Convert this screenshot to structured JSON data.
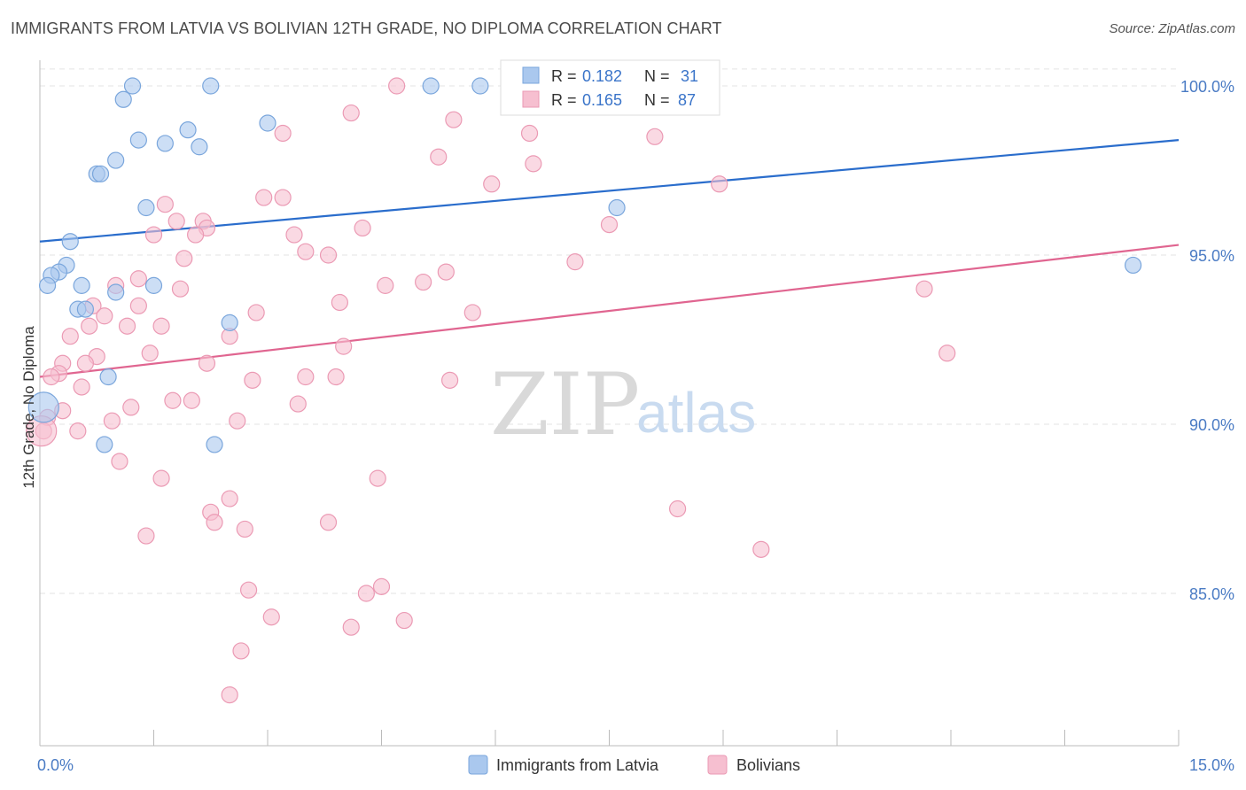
{
  "header": {
    "title": "IMMIGRANTS FROM LATVIA VS BOLIVIAN 12TH GRADE, NO DIPLOMA CORRELATION CHART",
    "source": "Source: ZipAtlas.com"
  },
  "watermark": {
    "zip": "ZIP",
    "atlas": "atlas"
  },
  "legend": {
    "series1": {
      "r_label": "R =",
      "r_value": "0.182",
      "n_label": "N =",
      "n_value": "31"
    },
    "series2": {
      "r_label": "R =",
      "r_value": "0.165",
      "n_label": "N =",
      "n_value": "87"
    },
    "bottom": [
      "Immigrants from Latvia",
      "Bolivians"
    ]
  },
  "colors": {
    "blue_fill": "#aac8ee",
    "blue_stroke": "#7aa6dc",
    "blue_line": "#2a6dcc",
    "pink_fill": "#f6bfd0",
    "pink_stroke": "#eb9ab4",
    "pink_line": "#e06590",
    "grid": "#e3e3e3",
    "tick_text": "#4a7bc4"
  },
  "chart_data": {
    "type": "scatter",
    "xlabel": "",
    "ylabel": "12th Grade, No Diploma",
    "xlim": [
      0,
      15
    ],
    "ylim": [
      80.7,
      101.0
    ],
    "x_tick_labels": [
      {
        "value": 0,
        "label": "0.0%"
      },
      {
        "value": 15,
        "label": "15.0%"
      }
    ],
    "x_minor_ticks": [
      1.5,
      3.0,
      4.5,
      6.0,
      7.5,
      9.0,
      10.5,
      12.0,
      13.5
    ],
    "y_ticks": [
      {
        "value": 85,
        "label": "85.0%"
      },
      {
        "value": 90,
        "label": "90.0%"
      },
      {
        "value": 95,
        "label": "95.0%"
      },
      {
        "value": 100,
        "label": "100.0%"
      }
    ],
    "grid": true,
    "series": [
      {
        "name": "Immigrants from Latvia",
        "color": "#aac8ee",
        "trend": {
          "x": [
            0,
            15
          ],
          "y": [
            95.4,
            98.4
          ]
        },
        "points": [
          [
            1.22,
            100.0
          ],
          [
            2.25,
            100.0
          ],
          [
            5.15,
            100.0
          ],
          [
            5.8,
            100.0
          ],
          [
            1.1,
            99.6
          ],
          [
            3.0,
            98.9
          ],
          [
            1.95,
            98.7
          ],
          [
            1.3,
            98.4
          ],
          [
            1.65,
            98.3
          ],
          [
            2.1,
            98.2
          ],
          [
            1.0,
            97.8
          ],
          [
            0.75,
            97.4
          ],
          [
            0.8,
            97.4
          ],
          [
            1.4,
            96.4
          ],
          [
            7.6,
            96.4
          ],
          [
            0.4,
            95.4
          ],
          [
            0.35,
            94.7
          ],
          [
            14.4,
            94.7
          ],
          [
            0.25,
            94.5
          ],
          [
            0.15,
            94.4
          ],
          [
            0.1,
            94.1
          ],
          [
            0.55,
            94.1
          ],
          [
            1.5,
            94.1
          ],
          [
            1.0,
            93.9
          ],
          [
            0.5,
            93.4
          ],
          [
            0.6,
            93.4
          ],
          [
            2.5,
            93.0
          ],
          [
            0.9,
            91.4
          ],
          [
            0.05,
            90.5
          ],
          [
            0.85,
            89.4
          ],
          [
            2.3,
            89.4
          ]
        ],
        "point_sizes": [
          10,
          10,
          10,
          10,
          10,
          10,
          10,
          10,
          10,
          10,
          10,
          10,
          10,
          10,
          10,
          10,
          10,
          10,
          10,
          10,
          10,
          10,
          10,
          10,
          10,
          10,
          10,
          10,
          18,
          10,
          10
        ]
      },
      {
        "name": "Bolivians",
        "color": "#f6bfd0",
        "trend": {
          "x": [
            0,
            15
          ],
          "y": [
            91.4,
            95.3
          ]
        },
        "points": [
          [
            4.7,
            100.0
          ],
          [
            4.1,
            99.2
          ],
          [
            5.45,
            99.0
          ],
          [
            3.2,
            98.6
          ],
          [
            6.45,
            98.6
          ],
          [
            8.1,
            98.5
          ],
          [
            5.25,
            97.9
          ],
          [
            6.5,
            97.7
          ],
          [
            5.95,
            97.1
          ],
          [
            8.95,
            97.1
          ],
          [
            2.95,
            96.7
          ],
          [
            3.2,
            96.7
          ],
          [
            1.65,
            96.5
          ],
          [
            1.8,
            96.0
          ],
          [
            2.15,
            96.0
          ],
          [
            7.5,
            95.9
          ],
          [
            2.2,
            95.8
          ],
          [
            4.25,
            95.8
          ],
          [
            1.5,
            95.6
          ],
          [
            2.05,
            95.6
          ],
          [
            3.35,
            95.6
          ],
          [
            3.5,
            95.1
          ],
          [
            3.8,
            95.0
          ],
          [
            1.9,
            94.9
          ],
          [
            7.05,
            94.8
          ],
          [
            5.35,
            94.5
          ],
          [
            1.3,
            94.3
          ],
          [
            5.05,
            94.2
          ],
          [
            1.0,
            94.1
          ],
          [
            4.55,
            94.1
          ],
          [
            1.85,
            94.0
          ],
          [
            11.65,
            94.0
          ],
          [
            1.3,
            93.5
          ],
          [
            3.95,
            93.6
          ],
          [
            0.7,
            93.5
          ],
          [
            2.85,
            93.3
          ],
          [
            5.7,
            93.3
          ],
          [
            0.85,
            93.2
          ],
          [
            1.15,
            92.9
          ],
          [
            1.6,
            92.9
          ],
          [
            0.65,
            92.9
          ],
          [
            2.5,
            92.6
          ],
          [
            0.4,
            92.6
          ],
          [
            4.0,
            92.3
          ],
          [
            1.45,
            92.1
          ],
          [
            11.95,
            92.1
          ],
          [
            0.75,
            92.0
          ],
          [
            0.3,
            91.8
          ],
          [
            0.6,
            91.8
          ],
          [
            2.2,
            91.8
          ],
          [
            0.25,
            91.5
          ],
          [
            0.15,
            91.4
          ],
          [
            2.8,
            91.3
          ],
          [
            3.5,
            91.4
          ],
          [
            3.9,
            91.4
          ],
          [
            5.4,
            91.3
          ],
          [
            0.55,
            91.1
          ],
          [
            1.75,
            90.7
          ],
          [
            2.0,
            90.7
          ],
          [
            3.4,
            90.6
          ],
          [
            1.2,
            90.5
          ],
          [
            0.3,
            90.4
          ],
          [
            0.1,
            90.2
          ],
          [
            0.95,
            90.1
          ],
          [
            2.6,
            90.1
          ],
          [
            0.05,
            89.8
          ],
          [
            0.5,
            89.8
          ],
          [
            1.05,
            88.9
          ],
          [
            1.6,
            88.4
          ],
          [
            4.45,
            88.4
          ],
          [
            2.5,
            87.8
          ],
          [
            8.4,
            87.5
          ],
          [
            2.25,
            87.4
          ],
          [
            2.3,
            87.1
          ],
          [
            3.8,
            87.1
          ],
          [
            2.7,
            86.9
          ],
          [
            1.4,
            86.7
          ],
          [
            9.5,
            86.3
          ],
          [
            4.5,
            85.2
          ],
          [
            2.75,
            85.1
          ],
          [
            4.3,
            85.0
          ],
          [
            3.05,
            84.3
          ],
          [
            4.8,
            84.2
          ],
          [
            4.1,
            84.0
          ],
          [
            2.65,
            83.3
          ],
          [
            2.5,
            82.0
          ],
          [
            0.02,
            89.8
          ]
        ],
        "point_sizes": [
          10,
          10,
          10,
          10,
          10,
          10,
          10,
          10,
          10,
          10,
          10,
          10,
          10,
          10,
          10,
          10,
          10,
          10,
          10,
          10,
          10,
          10,
          10,
          10,
          10,
          10,
          10,
          10,
          10,
          10,
          10,
          10,
          10,
          10,
          10,
          10,
          10,
          10,
          10,
          10,
          10,
          10,
          10,
          10,
          10,
          10,
          10,
          10,
          10,
          10,
          10,
          10,
          10,
          10,
          10,
          10,
          10,
          10,
          10,
          10,
          10,
          10,
          10,
          10,
          10,
          10,
          10,
          10,
          10,
          10,
          10,
          10,
          10,
          10,
          10,
          10,
          10,
          10,
          10,
          10,
          10,
          10,
          10,
          10,
          10,
          10,
          18
        ]
      }
    ]
  }
}
